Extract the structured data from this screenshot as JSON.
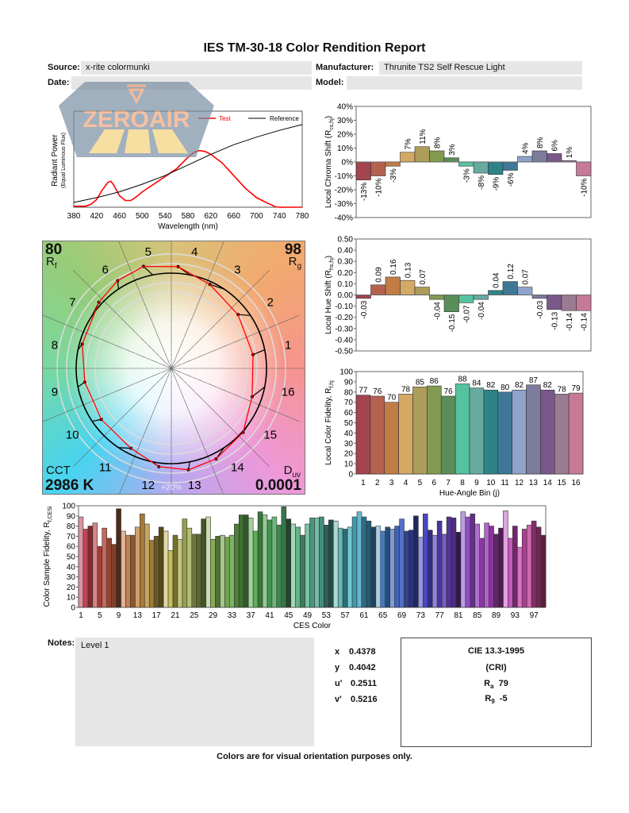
{
  "title": "IES TM-30-18 Color Rendition Report",
  "header": {
    "source_label": "Source:",
    "source": "x-rite colormunki",
    "manufacturer_label": "Manufacturer:",
    "manufacturer": "Thrunite TS2 Self Rescue Light",
    "date_label": "Date:",
    "date": "",
    "model_label": "Model:",
    "model": ""
  },
  "watermark": {
    "text": "ZEROAIR",
    "suffix": "ORG"
  },
  "vector_graphic": {
    "rf": "80",
    "rf_label": "R",
    "rf_sub": "f",
    "rg": "98",
    "rg_label": "R",
    "rg_sub": "g",
    "cct_label": "CCT",
    "cct": "2986 K",
    "duv_label": "D",
    "duv_sub": "uv",
    "duv": "0.0001",
    "ring_label": "+20%",
    "bin_labels": [
      "1",
      "2",
      "3",
      "4",
      "5",
      "6",
      "7",
      "8",
      "9",
      "10",
      "11",
      "12",
      "13",
      "14",
      "15",
      "16"
    ],
    "test_color": "#ff0000",
    "reference_color": "#000000"
  },
  "chart_data": [
    {
      "type": "line",
      "id": "spectrum",
      "xlabel": "Wavelength (nm)",
      "ylabel": "Radiant Power",
      "ylabel_sub": "(Equal Luminous Flux)",
      "xlim": [
        380,
        780
      ],
      "xticks": [
        380,
        420,
        460,
        500,
        540,
        580,
        620,
        660,
        700,
        740,
        780
      ],
      "legend": "top-right",
      "series": [
        {
          "name": "Test",
          "color": "#ff0000",
          "x": [
            380,
            400,
            410,
            420,
            430,
            440,
            445,
            450,
            460,
            470,
            480,
            490,
            500,
            520,
            540,
            560,
            580,
            590,
            600,
            610,
            620,
            640,
            660,
            680,
            700,
            720,
            728,
            732,
            740,
            780
          ],
          "y": [
            0.01,
            0.01,
            0.03,
            0.08,
            0.18,
            0.26,
            0.27,
            0.23,
            0.12,
            0.07,
            0.07,
            0.11,
            0.16,
            0.24,
            0.32,
            0.4,
            0.52,
            0.57,
            0.59,
            0.58,
            0.55,
            0.46,
            0.33,
            0.2,
            0.1,
            0.04,
            0.02,
            0.005,
            0,
            0
          ]
        },
        {
          "name": "Reference",
          "color": "#000000",
          "x": [
            380,
            420,
            460,
            500,
            540,
            580,
            620,
            660,
            700,
            740,
            780
          ],
          "y": [
            0.05,
            0.1,
            0.16,
            0.24,
            0.33,
            0.44,
            0.55,
            0.65,
            0.73,
            0.8,
            0.86
          ]
        }
      ]
    },
    {
      "type": "bar",
      "id": "chroma",
      "ylabel": "Local Chroma Shift (R",
      "ylabel_sub": "cs,hj",
      "ylabel_end": ")",
      "ylim": [
        -40,
        40
      ],
      "yticks": [
        "40%",
        "30%",
        "20%",
        "10%",
        "0%",
        "-10%",
        "-20%",
        "-30%",
        "-40%"
      ],
      "values": [
        -13,
        -10,
        -3,
        7,
        11,
        8,
        3,
        -3,
        -8,
        -9,
        -6,
        4,
        8,
        6,
        1,
        -10
      ],
      "labels": [
        "-13%",
        "-10%",
        "-3%",
        "7%",
        "11%",
        "8%",
        "3%",
        "-3%",
        "-8%",
        "-9%",
        "-6%",
        "4%",
        "8%",
        "6%",
        "1%",
        "-10%"
      ]
    },
    {
      "type": "bar",
      "id": "hue",
      "ylabel": "Local Hue Shift (R",
      "ylabel_sub": "hs,hj",
      "ylabel_end": ")",
      "ylim": [
        -0.5,
        0.5
      ],
      "yticks": [
        "0.50",
        "0.40",
        "0.30",
        "0.20",
        "0.10",
        "0.00",
        "-0.10",
        "-0.20",
        "-0.30",
        "-0.40",
        "-0.50"
      ],
      "values": [
        -0.03,
        0.09,
        0.16,
        0.13,
        0.07,
        -0.04,
        -0.15,
        -0.07,
        -0.04,
        0.04,
        0.12,
        0.07,
        -0.03,
        -0.13,
        -0.14,
        -0.14
      ],
      "labels": [
        "-0.03",
        "0.09",
        "0.16",
        "0.13",
        "0.07",
        "-0.04",
        "-0.15",
        "-0.07",
        "-0.04",
        "0.04",
        "0.12",
        "0.07",
        "-0.03",
        "-0.13",
        "-0.14",
        "-0.14"
      ]
    },
    {
      "type": "bar",
      "id": "fidelity",
      "ylabel": "Local Color Fidelity, R",
      "ylabel_sub": "f,hj",
      "xlabel": "Hue-Angle Bin (j)",
      "ylim": [
        0,
        100
      ],
      "yticks": [
        "100",
        "90",
        "80",
        "70",
        "60",
        "50",
        "40",
        "30",
        "20",
        "10",
        "0"
      ],
      "categories": [
        "1",
        "2",
        "3",
        "4",
        "5",
        "6",
        "7",
        "8",
        "9",
        "10",
        "11",
        "12",
        "13",
        "14",
        "15",
        "16"
      ],
      "values": [
        77,
        76,
        70,
        78,
        85,
        86,
        76,
        88,
        84,
        82,
        80,
        82,
        87,
        82,
        78,
        79
      ]
    },
    {
      "type": "bar",
      "id": "ces",
      "ylabel": "Color Sample Fidelity, R",
      "ylabel_sub": "f,CESi",
      "xlabel": "CES Color",
      "ylim": [
        0,
        100
      ],
      "yticks": [
        "100",
        "90",
        "80",
        "70",
        "60",
        "50",
        "40",
        "30",
        "20",
        "10",
        "0"
      ],
      "xticks": [
        "1",
        "5",
        "9",
        "13",
        "17",
        "21",
        "25",
        "29",
        "33",
        "37",
        "41",
        "45",
        "49",
        "53",
        "57",
        "61",
        "65",
        "69",
        "73",
        "77",
        "81",
        "85",
        "89",
        "93",
        "97"
      ],
      "values": [
        89,
        77,
        80,
        83,
        60,
        78,
        68,
        62,
        97,
        75,
        71,
        71,
        79,
        92,
        82,
        66,
        70,
        79,
        75,
        56,
        71,
        67,
        87,
        78,
        72,
        72,
        87,
        89,
        67,
        70,
        71,
        69,
        71,
        82,
        91,
        91,
        88,
        75,
        94,
        91,
        86,
        89,
        81,
        99,
        87,
        82,
        79,
        71,
        82,
        88,
        88,
        89,
        81,
        86,
        85,
        78,
        77,
        79,
        89,
        94,
        89,
        85,
        79,
        80,
        75,
        79,
        77,
        80,
        87,
        75,
        76,
        90,
        69,
        92,
        76,
        71,
        85,
        72,
        89,
        88,
        74,
        94,
        89,
        92,
        82,
        68,
        83,
        80,
        72,
        78,
        95,
        68,
        80,
        59,
        77,
        81,
        85,
        79,
        71
      ]
    }
  ],
  "bin_colors": [
    "#a3444f",
    "#b5614f",
    "#c27c46",
    "#d3a964",
    "#ad9c5b",
    "#819a50",
    "#5a8e59",
    "#55c2a0",
    "#67aaa0",
    "#2e8388",
    "#3f7896",
    "#8fa3cc",
    "#7e7c9c",
    "#7a588a",
    "#9a7b92",
    "#c67a97"
  ],
  "notes": {
    "label": "Notes:",
    "text": "Level 1"
  },
  "chromaticity": [
    {
      "label": "x",
      "value": "0.4378"
    },
    {
      "label": "y",
      "value": "0.4042"
    },
    {
      "label": "u'",
      "value": "0.2511"
    },
    {
      "label": "v'",
      "value": "0.5216"
    }
  ],
  "cie": {
    "title": "CIE 13.3-1995",
    "subtitle": "(CRI)",
    "ra_label": "R",
    "ra_sub": "a",
    "ra": "79",
    "r9_label": "R",
    "r9_sub": "9",
    "r9": "-5"
  },
  "footer": "Colors are for visual orientation purposes only."
}
